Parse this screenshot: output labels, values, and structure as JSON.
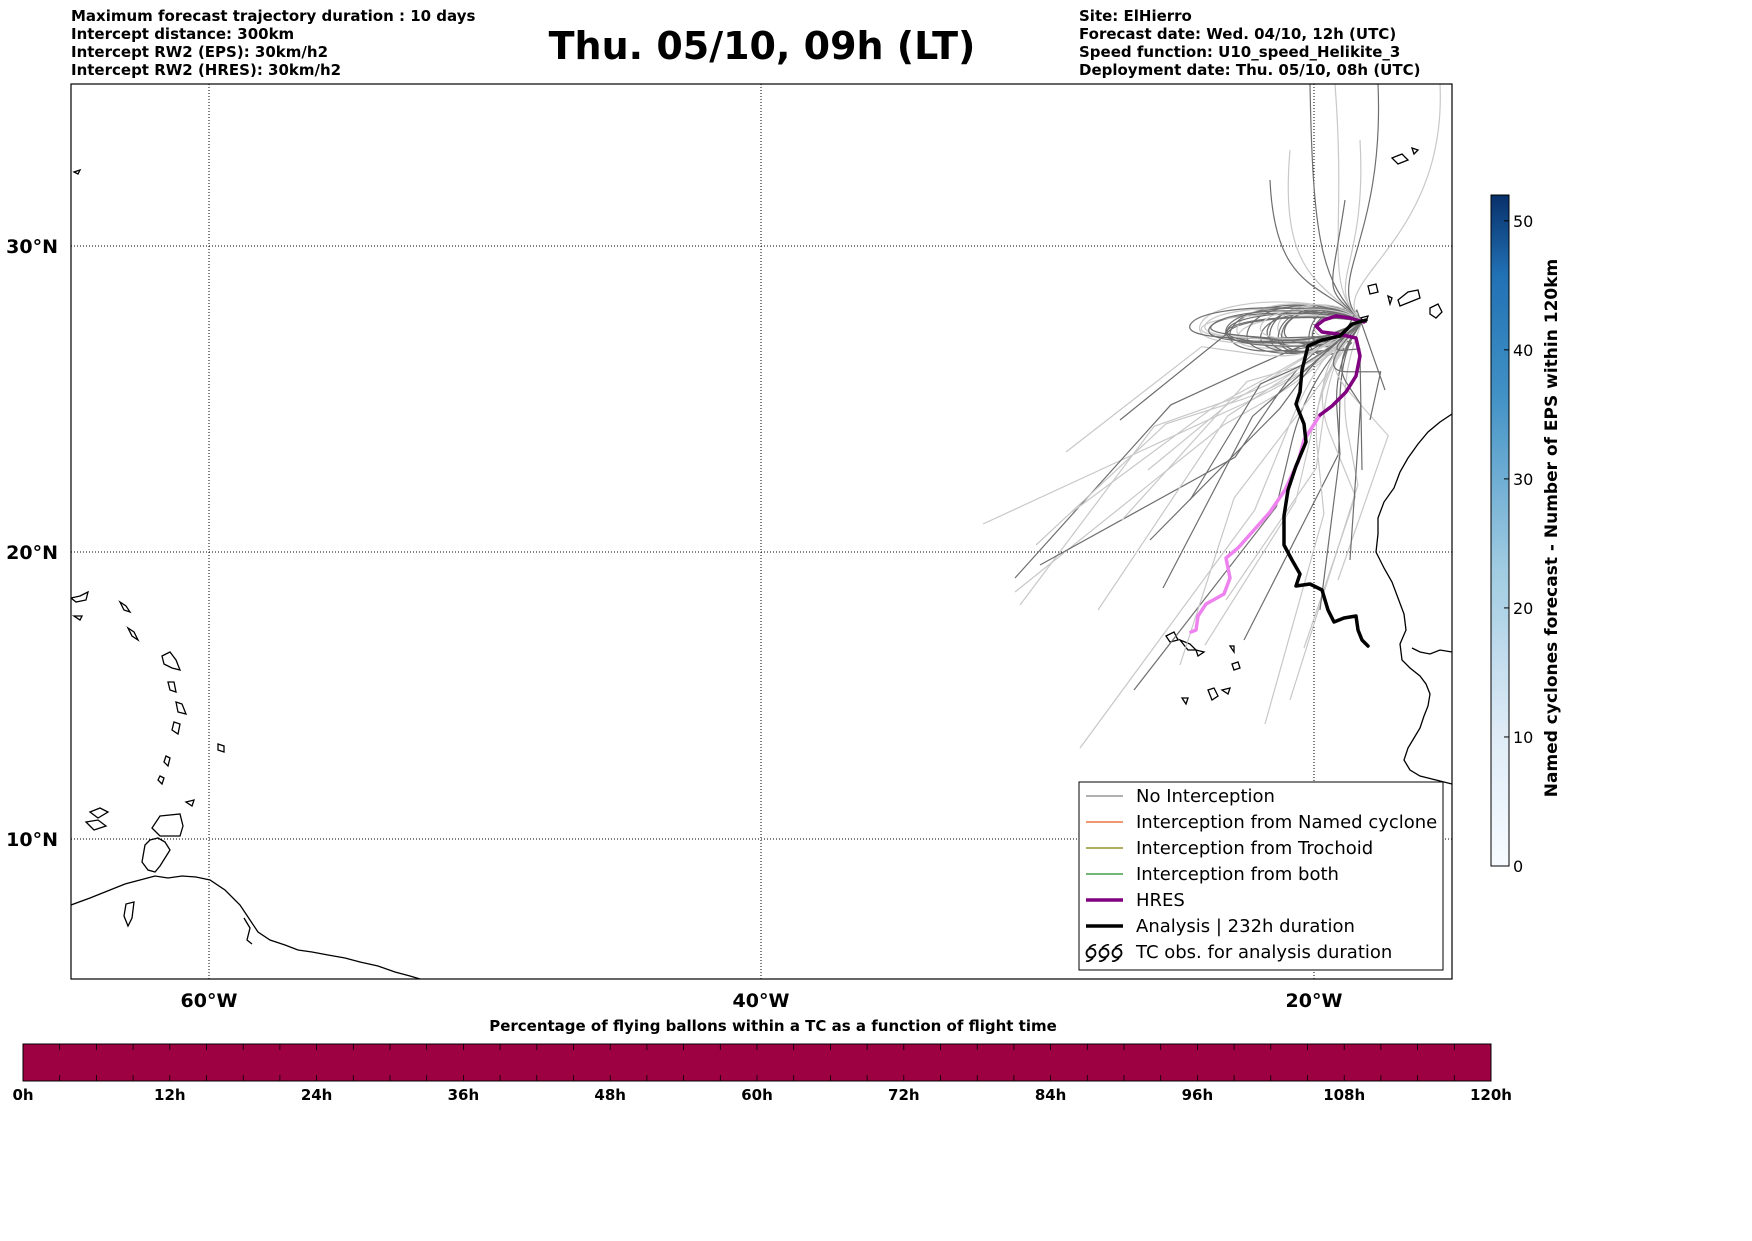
{
  "header": {
    "left": [
      "Maximum forecast trajectory duration : 10 days",
      "Intercept distance: 300km",
      "Intercept RW2 (EPS):  30km/h2",
      "Intercept RW2 (HRES): 30km/h2"
    ],
    "title": "Thu. 05/10, 09h (LT)",
    "right": [
      "Site: ElHierro",
      "Forecast date: Wed. 04/10, 12h (UTC)",
      "Speed function: U10_speed_Helikite_3",
      "Deployment date: Thu. 05/10, 08h (UTC)"
    ]
  },
  "map": {
    "lon_range": [
      -65,
      15
    ],
    "lat_range": [
      5.5,
      35
    ],
    "lat_labels": [
      "30°N",
      "20°N",
      "10°N"
    ],
    "lon_labels": [
      "60°W",
      "40°W",
      "20°W"
    ],
    "grid": "dotted"
  },
  "legend": {
    "items": [
      {
        "label": "No Interception",
        "color": "#808080",
        "width": 1
      },
      {
        "label": "Interception from Named cyclone",
        "color": "#e65c1a",
        "width": 1
      },
      {
        "label": "Interception from Trochoid",
        "color": "#808000",
        "width": 1
      },
      {
        "label": "Interception from both",
        "color": "#228b22",
        "width": 1
      },
      {
        "label": "HRES",
        "color": "#800080",
        "width": 3
      },
      {
        "label": "Analysis | 232h duration",
        "color": "#000000",
        "width": 3
      },
      {
        "label": "TC obs. for analysis duration",
        "icon": "cyclone-icon"
      }
    ]
  },
  "colorbar_right": {
    "label": "Named cyclones forecast - Number of EPS within 120km",
    "ticks": [
      "0",
      "10",
      "20",
      "30",
      "40",
      "50"
    ],
    "min": 0,
    "max": 52,
    "color_low": "#deebf7",
    "color_high": "#08306b"
  },
  "colorbar_bottom": {
    "title": "Percentage of flying ballons within a TC as a function of flight time",
    "ticks": [
      "0h",
      "12h",
      "24h",
      "36h",
      "48h",
      "60h",
      "72h",
      "84h",
      "96h",
      "108h",
      "120h"
    ],
    "percent_in_tc": 0,
    "color": "#9e0142"
  },
  "colors": {
    "eps_light": "#c8c8c8",
    "eps_dark": "#6e6e6e",
    "hres_dark": "#800080",
    "hres_light": "#ee82ee",
    "analysis": "#000000"
  }
}
